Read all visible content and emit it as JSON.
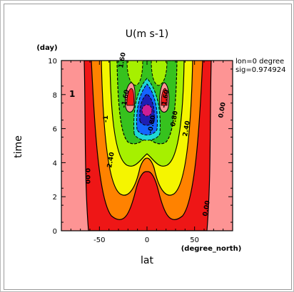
{
  "chart_data": {
    "type": "heatmap",
    "title": "U(m s-1)",
    "xlabel": "lat",
    "xunit": "(degree_north)",
    "ylabel": "time",
    "yunit": "(day)",
    "xlim": [
      -90,
      90
    ],
    "ylim": [
      0,
      10
    ],
    "xticks": [
      -50,
      0,
      50
    ],
    "yticks": [
      0,
      2,
      4,
      6,
      8,
      10
    ],
    "info": [
      "lon=0 degree",
      "sig=0.974924"
    ],
    "contour_labels": [
      "1",
      "-1",
      "0.00",
      "2.40",
      "2.40",
      "-1.60",
      "-1.60",
      "0.80",
      "0.00",
      "0.00",
      "-0.80",
      "1.60"
    ],
    "colors": {
      "pink": "#fd9494",
      "red": "#ee1616",
      "orange": "#ff8200",
      "yellow": "#f5f500",
      "lightgreen": "#a6f000",
      "green": "#36c21e",
      "cyan": "#1ed6d6",
      "blue": "#1464ff",
      "darkblue": "#1e1eb4",
      "magenta": "#cc1e96"
    }
  }
}
